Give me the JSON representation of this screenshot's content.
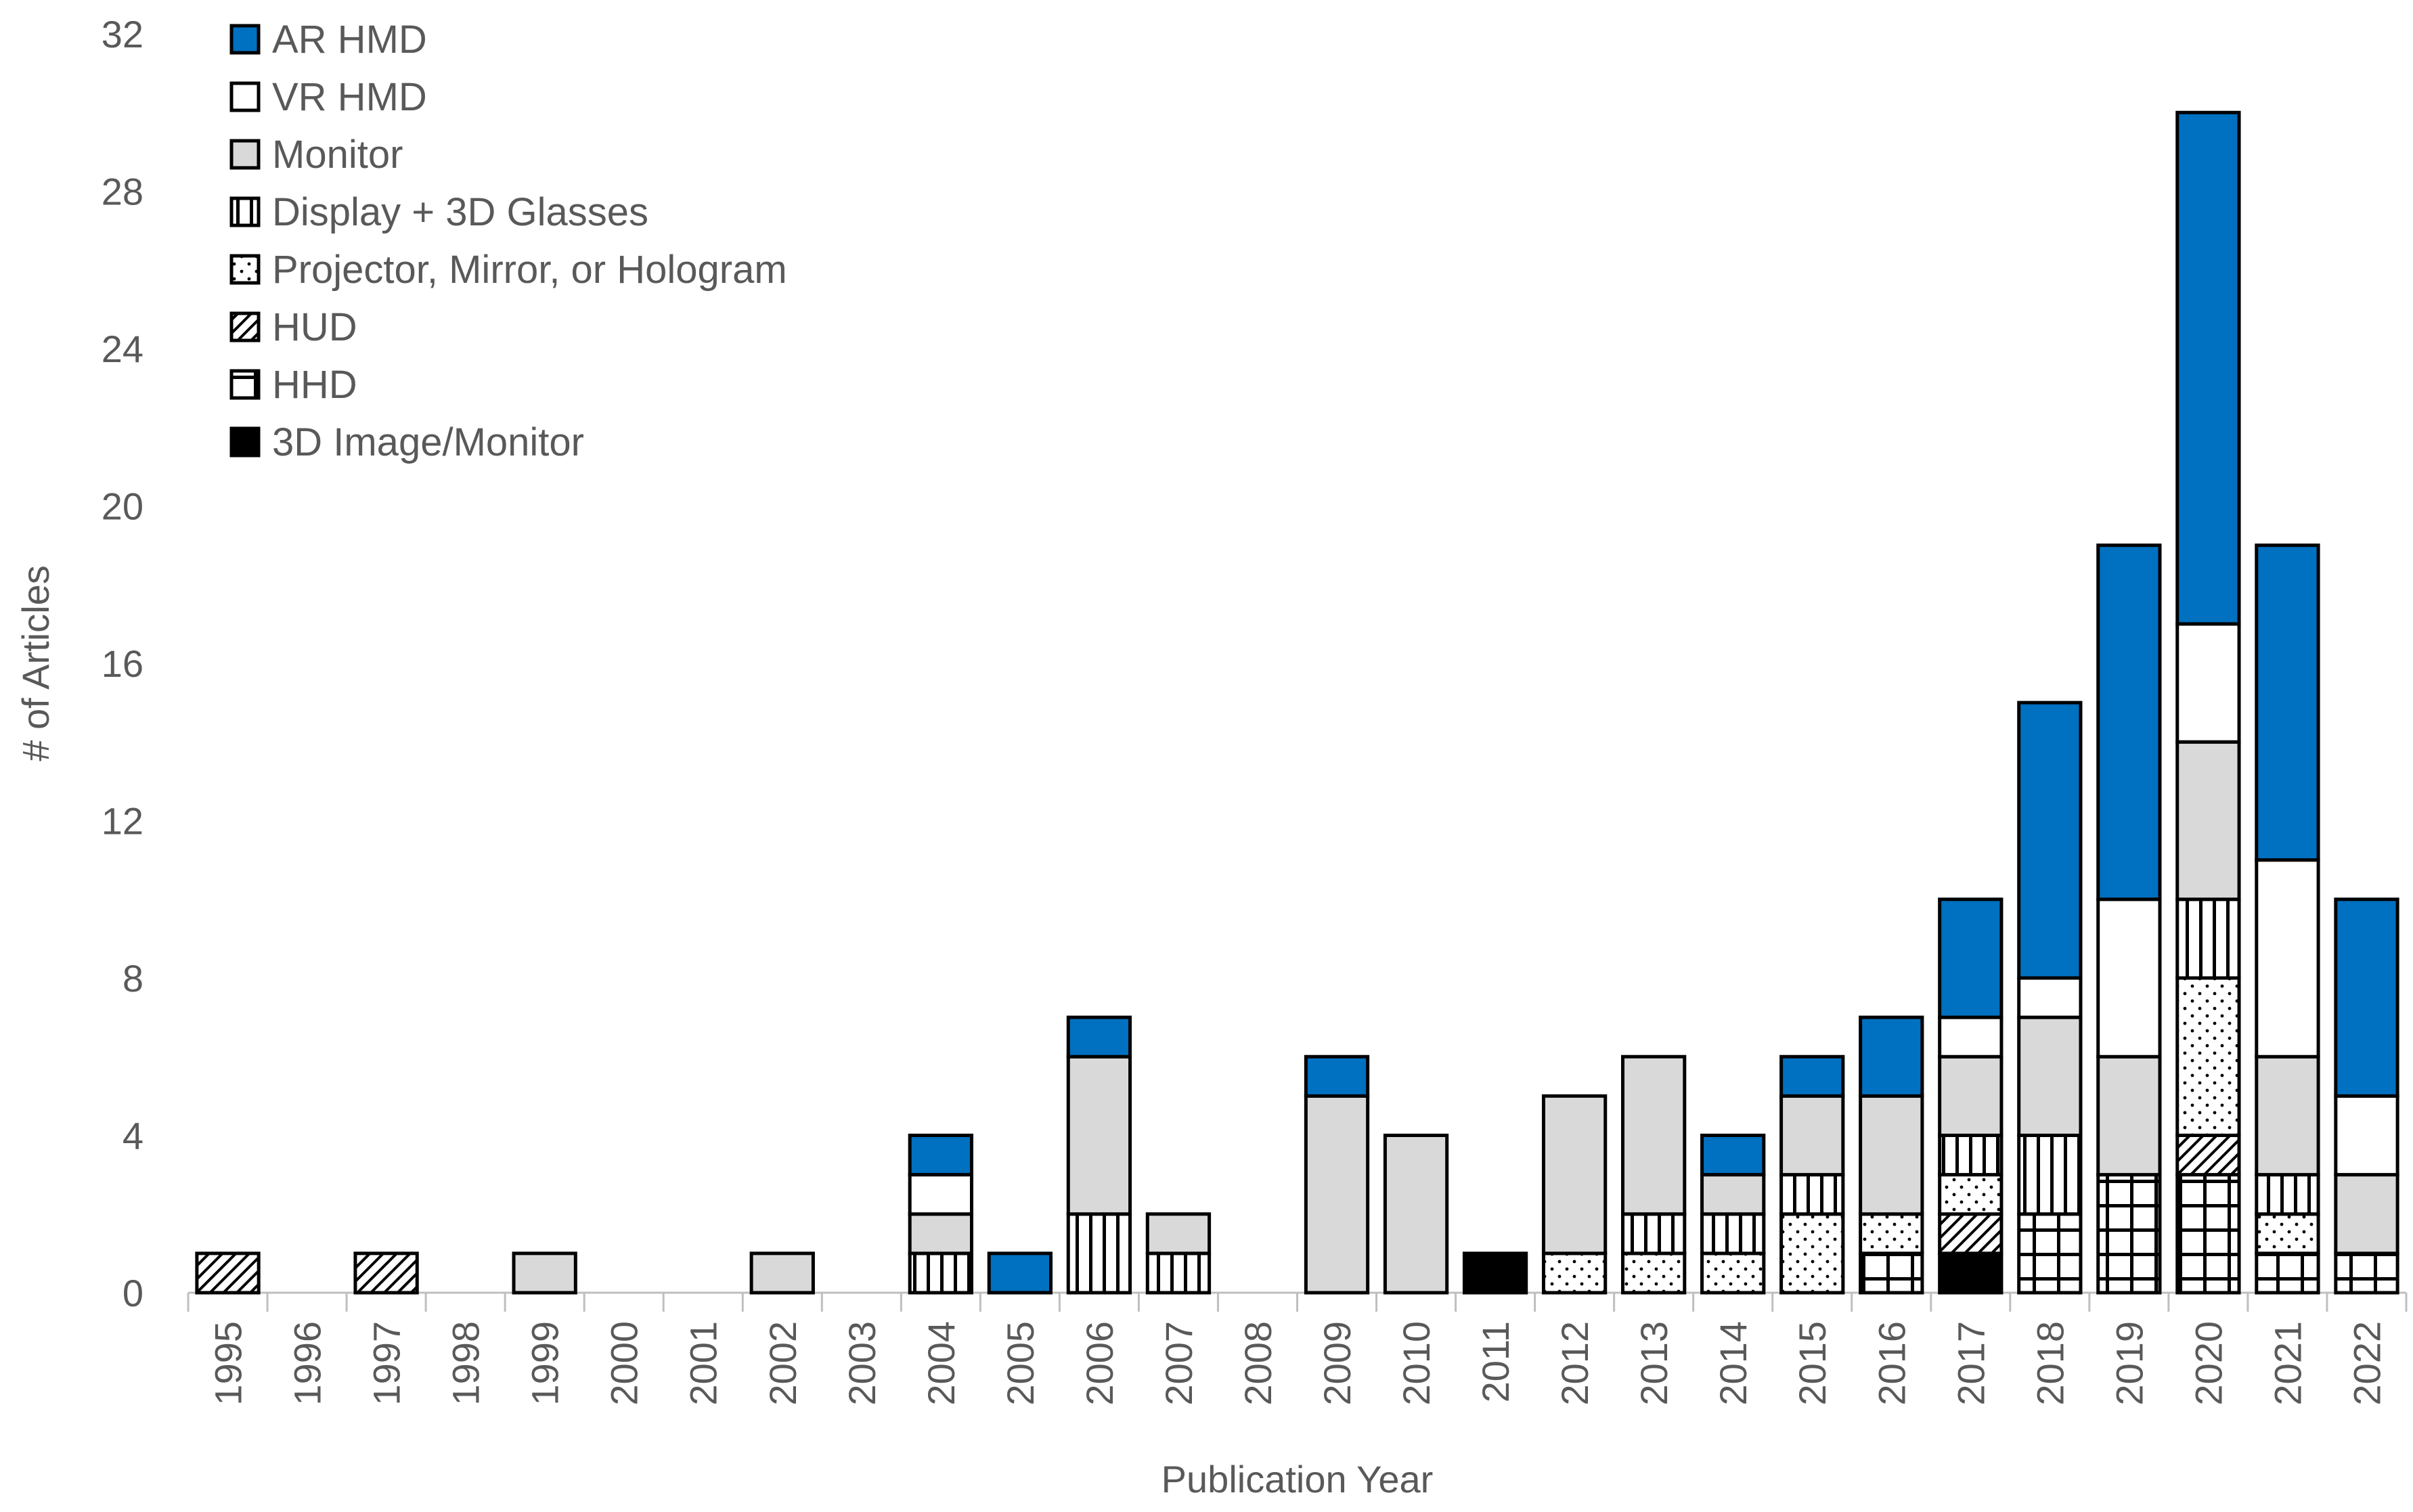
{
  "chart_data": {
    "type": "bar",
    "stacked": true,
    "title": "",
    "xlabel": "Publication Year",
    "ylabel": "# of Articles",
    "ylim": [
      0,
      32
    ],
    "yticks": [
      "0",
      "4",
      "8",
      "12",
      "16",
      "20",
      "24",
      "28",
      "32"
    ],
    "grid": false,
    "legend_position": "top-left",
    "categories": [
      "1995",
      "1996",
      "1997",
      "1998",
      "1999",
      "2000",
      "2001",
      "2002",
      "2003",
      "2004",
      "2005",
      "2006",
      "2007",
      "2008",
      "2009",
      "2010",
      "2011",
      "2012",
      "2013",
      "2014",
      "2015",
      "2016",
      "2017",
      "2018",
      "2019",
      "2020",
      "2021",
      "2022"
    ],
    "series": [
      {
        "name": "3D Image/Monitor",
        "fill": "solid-black",
        "values": [
          0,
          0,
          0,
          0,
          0,
          0,
          0,
          0,
          0,
          0,
          0,
          0,
          0,
          0,
          0,
          0,
          1,
          0,
          0,
          0,
          0,
          0,
          1,
          0,
          0,
          0,
          0,
          0
        ]
      },
      {
        "name": "HHD",
        "fill": "grid-pattern",
        "values": [
          0,
          0,
          0,
          0,
          0,
          0,
          0,
          0,
          0,
          0,
          0,
          0,
          0,
          0,
          0,
          0,
          0,
          0,
          0,
          0,
          0,
          1,
          0,
          2,
          3,
          3,
          1,
          1
        ]
      },
      {
        "name": "HUD",
        "fill": "diagonal-hatch",
        "values": [
          1,
          0,
          1,
          0,
          0,
          0,
          0,
          0,
          0,
          0,
          0,
          0,
          0,
          0,
          0,
          0,
          0,
          0,
          0,
          0,
          0,
          0,
          1,
          0,
          0,
          1,
          0,
          0
        ]
      },
      {
        "name": "Projector, Mirror, or Hologram",
        "fill": "dots",
        "values": [
          0,
          0,
          0,
          0,
          0,
          0,
          0,
          0,
          0,
          0,
          0,
          0,
          0,
          0,
          0,
          0,
          0,
          1,
          1,
          1,
          2,
          1,
          1,
          0,
          0,
          4,
          1,
          0
        ]
      },
      {
        "name": "Display + 3D Glasses",
        "fill": "vertical-lines",
        "values": [
          0,
          0,
          0,
          0,
          0,
          0,
          0,
          0,
          0,
          1,
          0,
          2,
          1,
          0,
          0,
          0,
          0,
          0,
          1,
          1,
          1,
          0,
          1,
          2,
          0,
          2,
          1,
          0
        ]
      },
      {
        "name": "Monitor",
        "fill": "#d9d9d9",
        "values": [
          0,
          0,
          0,
          0,
          1,
          0,
          0,
          1,
          0,
          1,
          0,
          4,
          1,
          0,
          5,
          4,
          0,
          4,
          4,
          1,
          2,
          3,
          2,
          3,
          3,
          4,
          3,
          2
        ]
      },
      {
        "name": "VR HMD",
        "fill": "#ffffff",
        "values": [
          0,
          0,
          0,
          0,
          0,
          0,
          0,
          0,
          0,
          1,
          0,
          0,
          0,
          0,
          0,
          0,
          0,
          0,
          0,
          0,
          0,
          0,
          1,
          1,
          4,
          3,
          5,
          2
        ]
      },
      {
        "name": "AR HMD",
        "fill": "#0070c0",
        "values": [
          0,
          0,
          0,
          0,
          0,
          0,
          0,
          0,
          0,
          1,
          1,
          1,
          0,
          0,
          1,
          0,
          0,
          0,
          0,
          1,
          1,
          2,
          3,
          7,
          9,
          13,
          8,
          5
        ]
      }
    ],
    "legend_order": [
      "AR HMD",
      "VR HMD",
      "Monitor",
      "Display + 3D Glasses",
      "Projector, Mirror, or Hologram",
      "HUD",
      "HHD",
      "3D Image/Monitor"
    ]
  }
}
